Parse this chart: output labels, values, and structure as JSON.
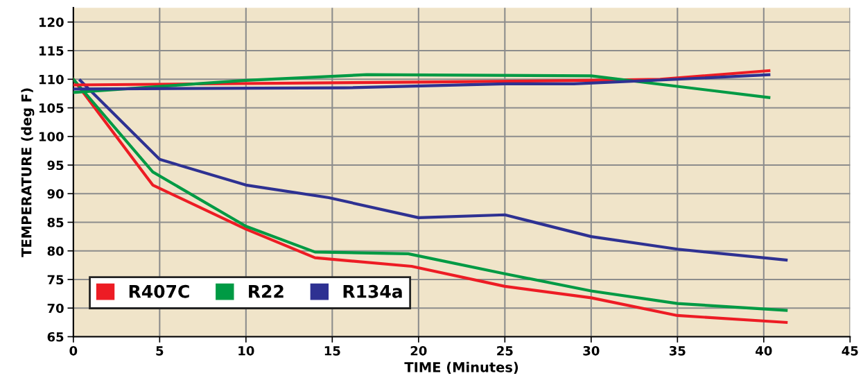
{
  "chart_data": {
    "type": "line",
    "xlabel": "TIME (Minutes)",
    "ylabel": "TEMPERATURE (deg F)",
    "xlim": [
      0,
      45
    ],
    "xticks": [
      0,
      5,
      10,
      15,
      20,
      25,
      30,
      35,
      40,
      45
    ],
    "ylim": [
      65,
      122.5
    ],
    "yticks": [
      65,
      70,
      75,
      80,
      85,
      90,
      95,
      100,
      105,
      110,
      115,
      120
    ],
    "grid": true,
    "legend": "bottom left",
    "marker": "none",
    "line_style": "solid",
    "series": [
      {
        "name": "R407C",
        "color": "#ed1c24",
        "x": [
          0,
          4.6,
          10,
          14,
          19.6,
          25,
          30,
          35,
          41.3
        ],
        "values": [
          110,
          91.5,
          83.8,
          78.8,
          77.3,
          73.8,
          71.8,
          68.7,
          67.5
        ]
      },
      {
        "name": "R22",
        "color": "#009a44",
        "x": [
          0,
          4.6,
          10,
          14,
          19.4,
          25,
          30,
          35,
          41.3
        ],
        "values": [
          110,
          93.8,
          84.3,
          79.8,
          79.5,
          76,
          73,
          70.8,
          69.6
        ]
      },
      {
        "name": "R134a",
        "color": "#2e3192",
        "x": [
          0.4,
          5,
          10,
          14.8,
          20,
          25,
          30,
          35,
          41.3
        ],
        "values": [
          109.8,
          96,
          91.5,
          89.3,
          85.8,
          86.3,
          82.5,
          80.3,
          78.4
        ]
      },
      {
        "color": "#ed1c24",
        "x": [
          0,
          20,
          30,
          34,
          40.3
        ],
        "values": [
          109,
          109.5,
          109.8,
          110,
          111.5
        ]
      },
      {
        "color": "#009a44",
        "x": [
          0,
          10,
          17,
          30,
          40.3
        ],
        "values": [
          107.7,
          109.8,
          110.8,
          110.6,
          106.8
        ]
      },
      {
        "color": "#2e3192",
        "x": [
          0,
          15.7,
          25,
          29,
          35,
          40.3
        ],
        "values": [
          108.3,
          108.5,
          109.2,
          109.2,
          110,
          110.8
        ]
      }
    ]
  }
}
